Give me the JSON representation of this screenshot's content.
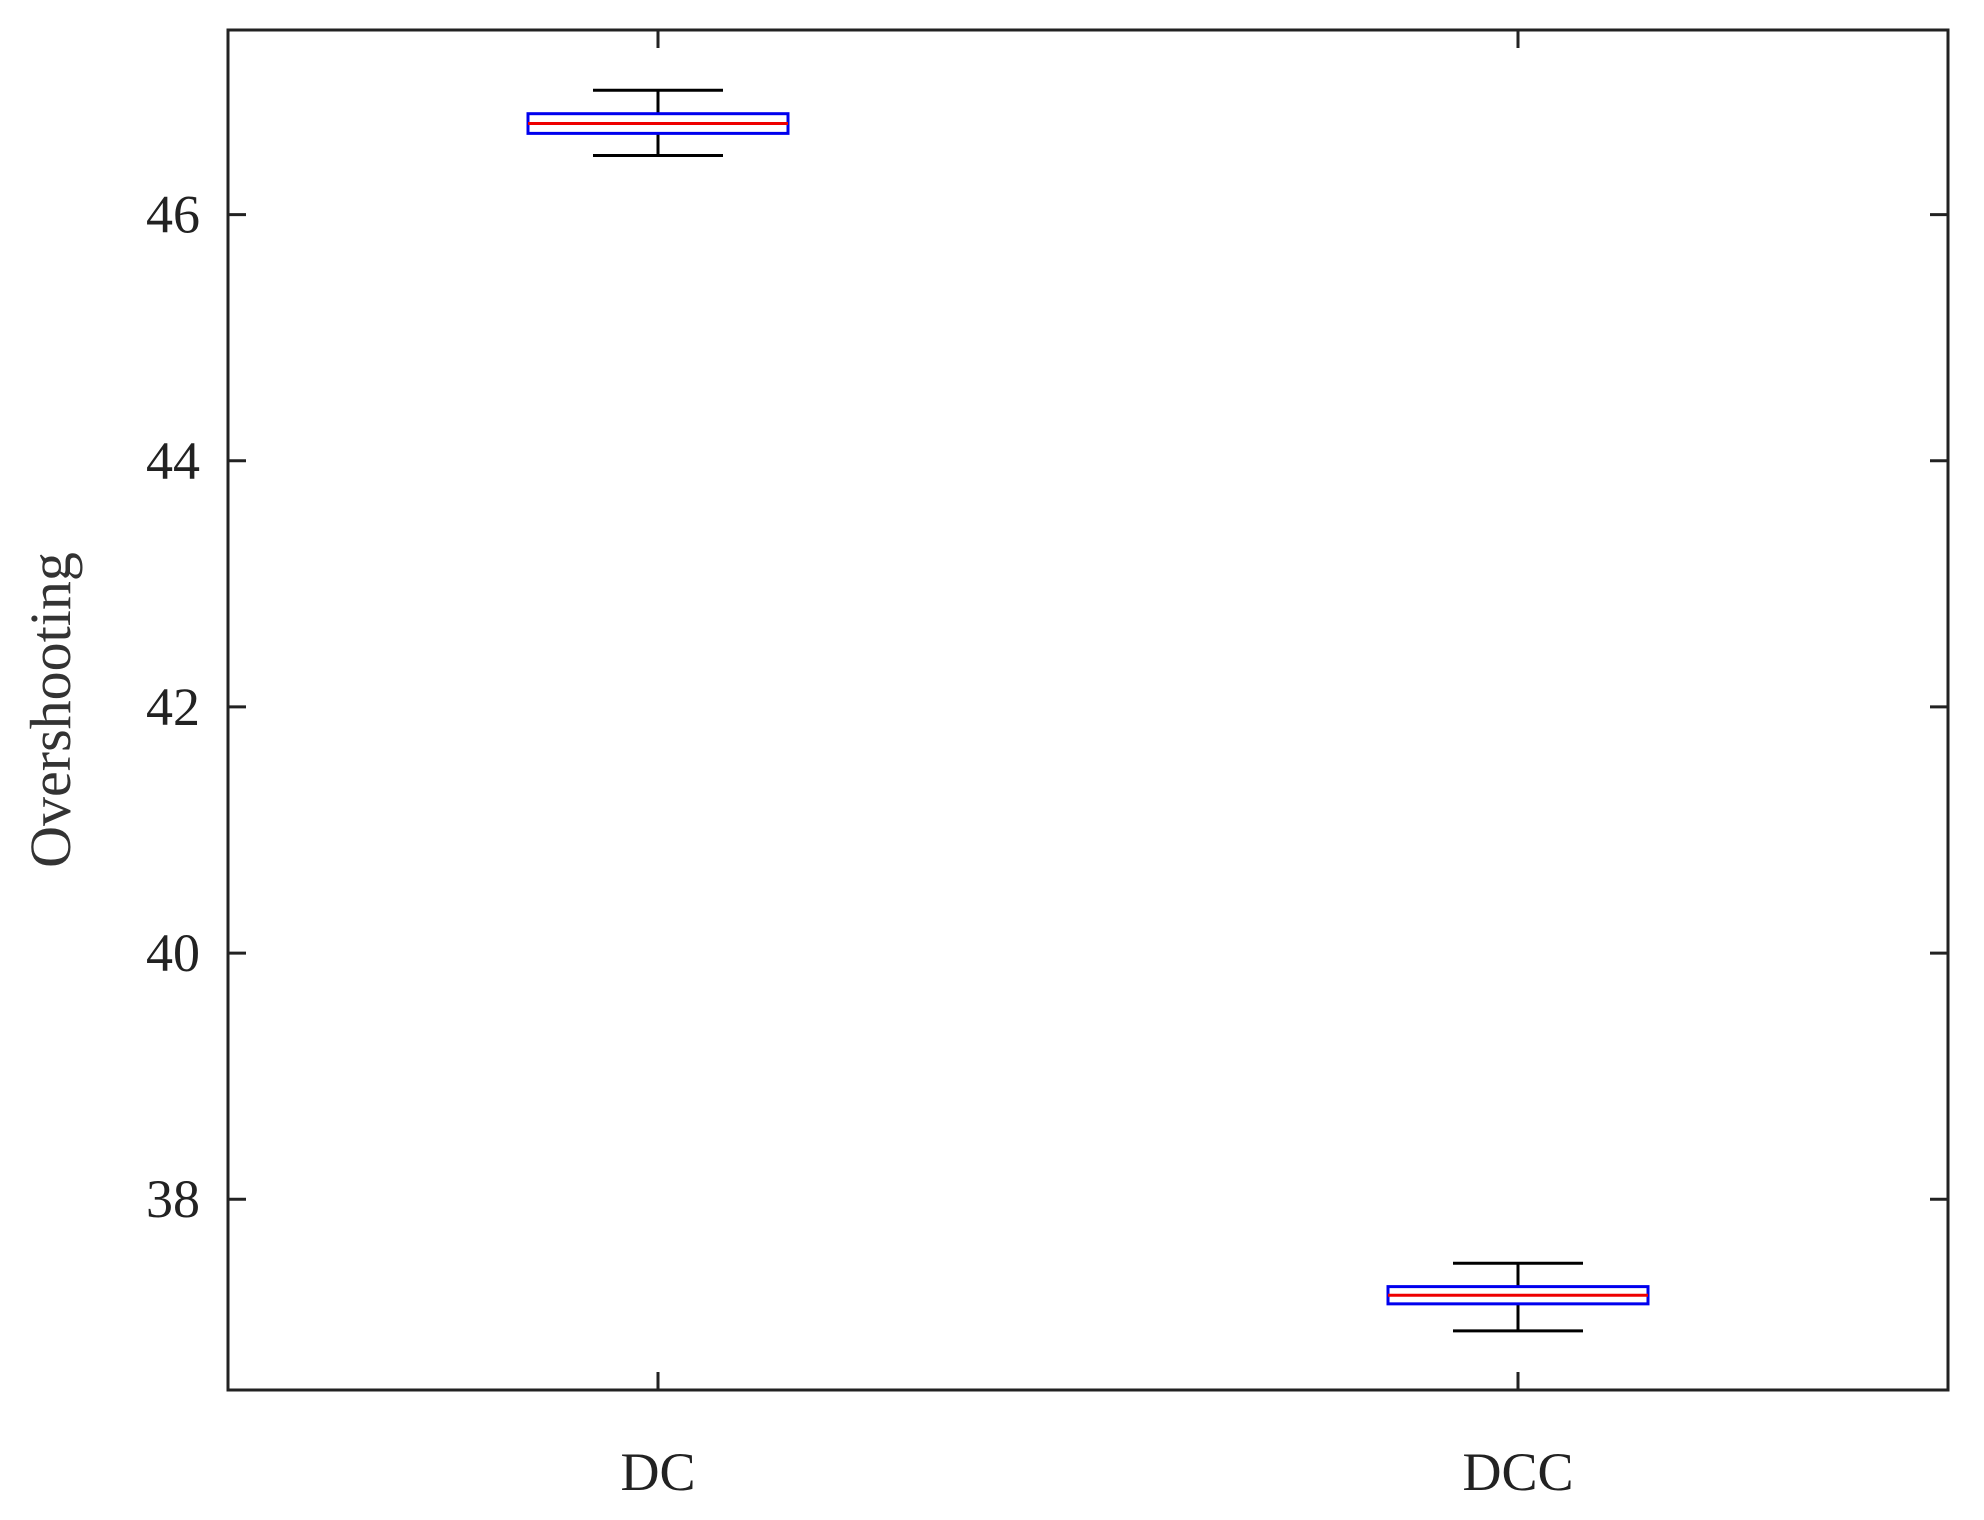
{
  "chart_data": {
    "type": "box",
    "title": "",
    "xlabel": "",
    "ylabel": "Overshooting",
    "categories": [
      "DC",
      "DCC"
    ],
    "boxes": [
      {
        "category": "DC",
        "whisker_low": 46.48,
        "q1": 46.66,
        "median": 46.74,
        "q3": 46.82,
        "whisker_high": 47.01
      },
      {
        "category": "DCC",
        "whisker_low": 36.93,
        "q1": 37.15,
        "median": 37.22,
        "q3": 37.29,
        "whisker_high": 37.48
      }
    ],
    "yticks": [
      38,
      40,
      42,
      44,
      46
    ],
    "ylim": [
      36.45,
      47.5
    ],
    "grid": false,
    "legend": "none",
    "colors": {
      "box": "#0000ee",
      "median": "#ee0000",
      "whisker": "#000000",
      "axis": "#222222"
    }
  }
}
